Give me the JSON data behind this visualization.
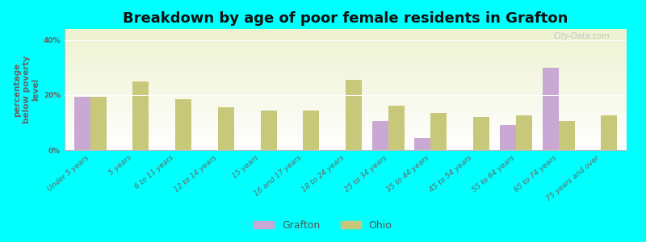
{
  "title": "Breakdown by age of poor female residents in Grafton",
  "ylabel": "percentage\nbelow poverty\nlevel",
  "background_color": "#00FFFF",
  "plot_bg_top": "#eef2d0",
  "plot_bg_bottom": "#ffffff",
  "categories": [
    "Under 5 years",
    "5 years",
    "6 to 11 years",
    "12 to 14 years",
    "15 years",
    "16 and 17 years",
    "18 to 24 years",
    "25 to 34 years",
    "35 to 44 years",
    "45 to 54 years",
    "55 to 64 years",
    "65 to 74 years",
    "75 years and over"
  ],
  "grafton_values": [
    19.5,
    null,
    null,
    null,
    null,
    null,
    null,
    10.5,
    4.5,
    null,
    9.0,
    30.0,
    null
  ],
  "ohio_values": [
    19.5,
    25.0,
    18.5,
    15.5,
    14.5,
    14.5,
    25.5,
    16.0,
    13.5,
    12.0,
    12.5,
    10.5,
    12.5
  ],
  "grafton_color": "#c9a8d4",
  "ohio_color": "#c8c87a",
  "bar_width": 0.38,
  "ylim": [
    0,
    44
  ],
  "yticks": [
    0,
    20,
    40
  ],
  "ytick_labels": [
    "0%",
    "20%",
    "40%"
  ],
  "legend_labels": [
    "Grafton",
    "Ohio"
  ],
  "title_fontsize": 13,
  "axis_label_fontsize": 7.5,
  "tick_fontsize": 6.5,
  "watermark": "City-Data.com"
}
